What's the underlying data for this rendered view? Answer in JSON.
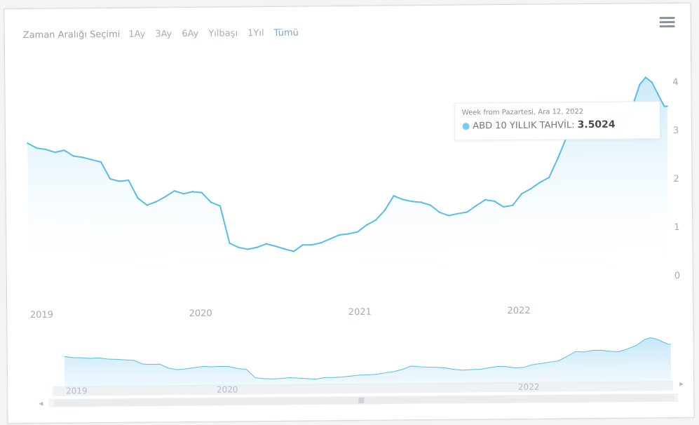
{
  "range_selector": {
    "label": "Zaman Aralığı Seçimi",
    "buttons": [
      "1Ay",
      "3Ay",
      "6Ay",
      "Yılbaşı",
      "1Yıl",
      "Tümü"
    ]
  },
  "tooltip": {
    "date": "Week from Pazartesi, Ara 12, 2022",
    "series": "ABD 10 YILLIK TAHVİL:",
    "value": "3.5024"
  },
  "colors": {
    "line": "#58bde8",
    "area": "#9fd8f3",
    "tooltip_dot": "#7cc8ee"
  },
  "navigator": {
    "labels": [
      "2019",
      "2020",
      "2022"
    ]
  },
  "chart_data": {
    "type": "area",
    "series": [
      {
        "name": "ABD 10 YILLIK TAHVİL",
        "x": [
          "2018-12-03",
          "2018-12-24",
          "2019-01-14",
          "2019-02-04",
          "2019-02-25",
          "2019-03-18",
          "2019-04-08",
          "2019-04-29",
          "2019-05-20",
          "2019-06-10",
          "2019-07-01",
          "2019-07-22",
          "2019-08-12",
          "2019-09-02",
          "2019-09-23",
          "2019-10-14",
          "2019-11-04",
          "2019-11-25",
          "2019-12-16",
          "2020-01-06",
          "2020-01-27",
          "2020-02-17",
          "2020-03-09",
          "2020-03-30",
          "2020-04-20",
          "2020-05-11",
          "2020-06-01",
          "2020-06-22",
          "2020-07-13",
          "2020-08-03",
          "2020-08-24",
          "2020-09-14",
          "2020-10-05",
          "2020-10-26",
          "2020-11-16",
          "2020-12-07",
          "2020-12-28",
          "2021-01-18",
          "2021-02-08",
          "2021-03-01",
          "2021-03-22",
          "2021-04-12",
          "2021-05-03",
          "2021-05-24",
          "2021-06-14",
          "2021-07-05",
          "2021-07-26",
          "2021-08-16",
          "2021-09-06",
          "2021-09-27",
          "2021-10-18",
          "2021-11-08",
          "2021-11-29",
          "2021-12-20",
          "2022-01-10",
          "2022-01-31",
          "2022-02-21",
          "2022-03-14",
          "2022-04-04",
          "2022-04-25",
          "2022-05-16",
          "2022-06-06",
          "2022-06-27",
          "2022-07-18",
          "2022-08-08",
          "2022-08-29",
          "2022-09-19",
          "2022-10-10",
          "2022-10-24",
          "2022-11-07",
          "2022-11-21",
          "2022-12-05",
          "2022-12-12"
        ],
        "y": [
          2.85,
          2.75,
          2.72,
          2.66,
          2.7,
          2.58,
          2.55,
          2.5,
          2.45,
          2.1,
          2.05,
          2.07,
          1.7,
          1.55,
          1.62,
          1.72,
          1.84,
          1.78,
          1.82,
          1.8,
          1.6,
          1.52,
          0.75,
          0.66,
          0.62,
          0.66,
          0.73,
          0.68,
          0.62,
          0.57,
          0.7,
          0.7,
          0.74,
          0.82,
          0.9,
          0.92,
          0.96,
          1.1,
          1.2,
          1.4,
          1.7,
          1.62,
          1.58,
          1.56,
          1.5,
          1.35,
          1.28,
          1.32,
          1.35,
          1.48,
          1.6,
          1.57,
          1.45,
          1.48,
          1.72,
          1.82,
          1.95,
          2.05,
          2.45,
          2.9,
          2.85,
          3.0,
          3.0,
          2.9,
          2.85,
          3.1,
          3.4,
          3.95,
          4.1,
          4.0,
          3.75,
          3.5,
          3.5
        ]
      }
    ],
    "xlabels": [
      "2019",
      "2020",
      "2021",
      "2022"
    ],
    "yticks": [
      0,
      1,
      2,
      3,
      4
    ],
    "ylim": [
      0,
      4
    ],
    "xlim": [
      "2018-12-01",
      "2022-12-12"
    ],
    "grid": false,
    "legend": "none"
  }
}
